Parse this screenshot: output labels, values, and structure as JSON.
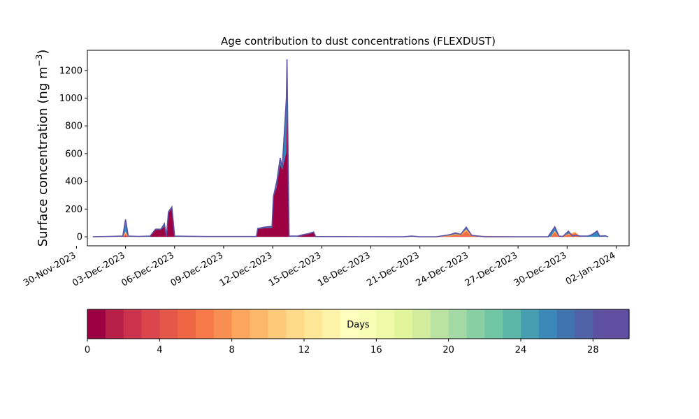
{
  "chart_data": {
    "type": "area",
    "title": "Age contribution to dust concentrations (FLEXDUST)",
    "ylabel_main": "Surface concentration (ng m",
    "ylabel_sup": "−3",
    "ylabel_close": ")",
    "xlabel": "",
    "ylim": [
      -65,
      1345
    ],
    "xlim": [
      "2023-11-30T16:00",
      "2024-01-02T19:00"
    ],
    "y_ticks": [
      0,
      200,
      400,
      600,
      800,
      1000,
      1200
    ],
    "x_ticks": [
      "30-Nov-2023",
      "03-Dec-2023",
      "06-Dec-2023",
      "09-Dec-2023",
      "12-Dec-2023",
      "15-Dec-2023",
      "18-Dec-2023",
      "21-Dec-2023",
      "24-Dec-2023",
      "27-Dec-2023",
      "30-Dec-2023",
      "02-Jan-2024"
    ],
    "x_tick_dates": [
      "2023-11-30",
      "2023-12-03",
      "2023-12-06",
      "2023-12-09",
      "2023-12-12",
      "2023-12-15",
      "2023-12-18",
      "2023-12-21",
      "2023-12-24",
      "2023-12-27",
      "2023-12-30",
      "2024-01-02"
    ],
    "series": [
      {
        "color": "#9e0142",
        "points": [
          [
            "2023-12-01T00:00",
            0
          ],
          [
            "2023-12-02T00:00",
            0
          ],
          [
            "2023-12-02T20:00",
            0
          ],
          [
            "2023-12-03T00:00",
            5
          ],
          [
            "2023-12-03T04:00",
            0
          ],
          [
            "2023-12-03T18:00",
            0
          ],
          [
            "2023-12-04T12:00",
            0
          ],
          [
            "2023-12-04T20:00",
            50
          ],
          [
            "2023-12-05T04:00",
            50
          ],
          [
            "2023-12-05T09:00",
            75
          ],
          [
            "2023-12-05T12:00",
            0
          ],
          [
            "2023-12-05T15:00",
            170
          ],
          [
            "2023-12-05T20:00",
            205
          ],
          [
            "2023-12-06T00:00",
            0
          ],
          [
            "2023-12-08T00:00",
            0
          ],
          [
            "2023-12-11T00:00",
            0
          ],
          [
            "2023-12-11T02:00",
            55
          ],
          [
            "2023-12-11T12:00",
            62
          ],
          [
            "2023-12-11T23:00",
            65
          ],
          [
            "2023-12-12T01:00",
            280
          ],
          [
            "2023-12-12T06:00",
            360
          ],
          [
            "2023-12-12T11:00",
            520
          ],
          [
            "2023-12-12T14:00",
            480
          ],
          [
            "2023-12-12T20:00",
            610
          ],
          [
            "2023-12-12T21:00",
            900
          ],
          [
            "2023-12-12T23:00",
            350
          ],
          [
            "2023-12-13T00:00",
            0
          ],
          [
            "2023-12-13T12:00",
            0
          ],
          [
            "2023-12-13T20:00",
            10
          ],
          [
            "2023-12-14T04:00",
            18
          ],
          [
            "2023-12-14T12:00",
            28
          ],
          [
            "2023-12-14T15:00",
            0
          ],
          [
            "2023-12-31T00:00",
            0
          ]
        ]
      },
      {
        "color": "#f46d43",
        "points": [
          [
            "2023-12-01T00:00",
            0
          ],
          [
            "2023-12-02T00:00",
            0
          ],
          [
            "2023-12-02T20:00",
            0
          ],
          [
            "2023-12-03T00:00",
            20
          ],
          [
            "2023-12-03T04:00",
            0
          ],
          [
            "2023-12-22T00:00",
            0
          ],
          [
            "2023-12-22T20:00",
            5
          ],
          [
            "2023-12-23T04:00",
            15
          ],
          [
            "2023-12-23T12:00",
            10
          ],
          [
            "2023-12-23T20:00",
            40
          ],
          [
            "2023-12-24T04:00",
            5
          ],
          [
            "2023-12-29T00:00",
            0
          ],
          [
            "2023-12-29T06:00",
            30
          ],
          [
            "2023-12-29T12:00",
            0
          ],
          [
            "2023-12-30T12:00",
            25
          ],
          [
            "2023-12-30T20:00",
            0
          ],
          [
            "2023-12-31T00:00",
            0
          ]
        ]
      },
      {
        "color": "#fdae61",
        "points": [
          [
            "2023-12-01T00:00",
            0
          ],
          [
            "2023-12-02T00:00",
            2
          ],
          [
            "2023-12-02T20:00",
            0
          ],
          [
            "2023-12-03T00:00",
            40
          ],
          [
            "2023-12-03T04:00",
            0
          ],
          [
            "2023-12-22T00:00",
            0
          ],
          [
            "2023-12-22T20:00",
            10
          ],
          [
            "2023-12-23T04:00",
            20
          ],
          [
            "2023-12-23T12:00",
            15
          ],
          [
            "2023-12-23T20:00",
            55
          ],
          [
            "2023-12-24T04:00",
            8
          ],
          [
            "2023-12-29T00:00",
            0
          ],
          [
            "2023-12-29T06:00",
            45
          ],
          [
            "2023-12-29T12:00",
            0
          ],
          [
            "2023-12-30T12:00",
            35
          ],
          [
            "2023-12-30T20:00",
            0
          ],
          [
            "2023-12-31T00:00",
            0
          ]
        ]
      },
      {
        "color": "#3288bd",
        "points": [
          [
            "2023-12-01T00:00",
            0
          ],
          [
            "2023-12-02T00:00",
            3
          ],
          [
            "2023-12-02T20:00",
            5
          ],
          [
            "2023-12-03T00:00",
            125
          ],
          [
            "2023-12-03T04:00",
            5
          ],
          [
            "2023-12-03T18:00",
            3
          ],
          [
            "2023-12-04T12:00",
            5
          ],
          [
            "2023-12-04T20:00",
            55
          ],
          [
            "2023-12-05T04:00",
            55
          ],
          [
            "2023-12-05T09:00",
            95
          ],
          [
            "2023-12-05T12:00",
            5
          ],
          [
            "2023-12-05T15:00",
            180
          ],
          [
            "2023-12-05T20:00",
            215
          ],
          [
            "2023-12-06T00:00",
            5
          ],
          [
            "2023-12-08T00:00",
            2
          ],
          [
            "2023-12-11T00:00",
            2
          ],
          [
            "2023-12-11T02:00",
            60
          ],
          [
            "2023-12-11T12:00",
            70
          ],
          [
            "2023-12-11T23:00",
            75
          ],
          [
            "2023-12-12T01:00",
            290
          ],
          [
            "2023-12-12T06:00",
            400
          ],
          [
            "2023-12-12T11:00",
            570
          ],
          [
            "2023-12-12T14:00",
            500
          ],
          [
            "2023-12-12T20:00",
            1000
          ],
          [
            "2023-12-12T21:00",
            1280
          ],
          [
            "2023-12-12T23:00",
            400
          ],
          [
            "2023-12-13T00:00",
            5
          ],
          [
            "2023-12-13T12:00",
            5
          ],
          [
            "2023-12-13T20:00",
            15
          ],
          [
            "2023-12-14T04:00",
            22
          ],
          [
            "2023-12-14T12:00",
            35
          ],
          [
            "2023-12-14T15:00",
            2
          ],
          [
            "2023-12-20T00:00",
            0
          ],
          [
            "2023-12-20T12:00",
            5
          ],
          [
            "2023-12-21T00:00",
            0
          ],
          [
            "2023-12-22T00:00",
            0
          ],
          [
            "2023-12-22T20:00",
            15
          ],
          [
            "2023-12-23T04:00",
            28
          ],
          [
            "2023-12-23T12:00",
            18
          ],
          [
            "2023-12-23T20:00",
            70
          ],
          [
            "2023-12-24T04:00",
            10
          ],
          [
            "2023-12-25T00:00",
            0
          ],
          [
            "2023-12-28T20:00",
            0
          ],
          [
            "2023-12-29T06:00",
            72
          ],
          [
            "2023-12-29T12:00",
            5
          ],
          [
            "2023-12-29T18:00",
            3
          ],
          [
            "2023-12-30T02:00",
            40
          ],
          [
            "2023-12-30T08:00",
            5
          ],
          [
            "2023-12-30T12:00",
            10
          ],
          [
            "2023-12-30T20:00",
            5
          ],
          [
            "2023-12-31T06:00",
            5
          ],
          [
            "2023-12-31T12:00",
            15
          ],
          [
            "2023-12-31T20:00",
            42
          ],
          [
            "2024-01-01T00:00",
            5
          ],
          [
            "2024-01-01T08:00",
            8
          ],
          [
            "2024-01-01T12:00",
            0
          ]
        ]
      }
    ],
    "colorbar": {
      "label": "Days",
      "range": [
        0,
        30
      ],
      "ticks": [
        "0",
        "4",
        "8",
        "12",
        "16",
        "20",
        "24",
        "28"
      ],
      "tick_values": [
        0,
        4,
        8,
        12,
        16,
        20,
        24,
        28
      ],
      "colors": [
        "#9e0142",
        "#b51f48",
        "#cb334c",
        "#da464c",
        "#e55749",
        "#ef6645",
        "#f67a49",
        "#f98e52",
        "#fca55d",
        "#fdb768",
        "#fdc877",
        "#fed988",
        "#fee796",
        "#fff3a9",
        "#ffffbe",
        "#f8fcb4",
        "#effaa9",
        "#e3f59b",
        "#d0ec9c",
        "#bae3a1",
        "#a2d9a4",
        "#88cfa4",
        "#70c5a4",
        "#5cb7a9",
        "#469eb2",
        "#3a89b9",
        "#3f74b1",
        "#5062a8",
        "#5e4fa2",
        "#5e4fa2"
      ]
    }
  }
}
